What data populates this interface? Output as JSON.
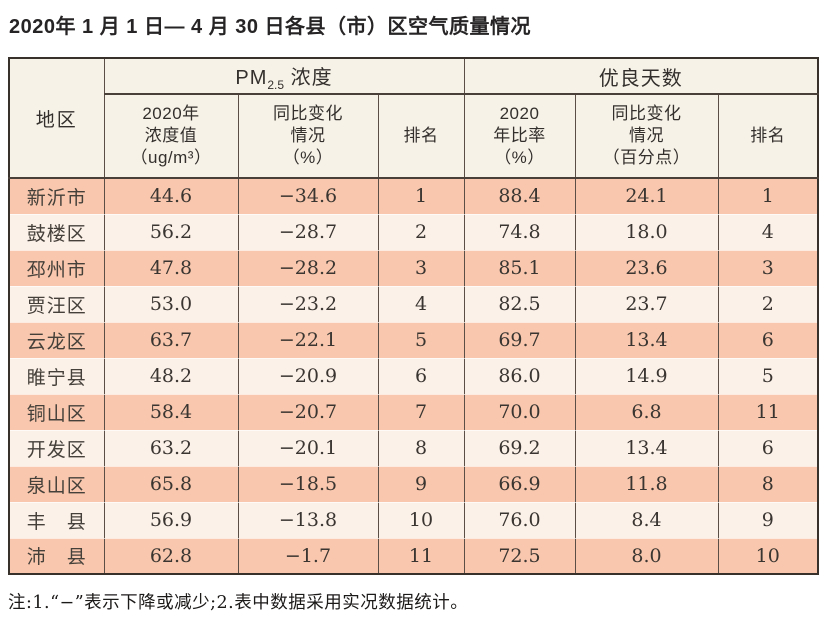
{
  "title": "2020年 1 月 1 日— 4 月 30 日各县（市）区空气质量情况",
  "note": "注:1.“−”表示下降或减少;2.表中数据采用实况数据统计。",
  "table": {
    "header": {
      "region": "地区",
      "pm_group": {
        "prefix": "PM",
        "sub": "2.5",
        "suffix": " 浓度"
      },
      "good_group": "优良天数",
      "pm_value": "2020年\n浓度值\n（ug/m³）",
      "pm_change": "同比变化\n情况\n（%）",
      "pm_rank": "排名",
      "good_rate": "2020\n年比率\n（%）",
      "good_change": "同比变化\n情况\n（百分点）",
      "good_rank": "排名"
    },
    "rows": [
      {
        "region": "新沂市",
        "pm_value": "44.6",
        "pm_change": "−34.6",
        "pm_rank": "1",
        "good_rate": "88.4",
        "good_change": "24.1",
        "good_rank": "1"
      },
      {
        "region": "鼓楼区",
        "pm_value": "56.2",
        "pm_change": "−28.7",
        "pm_rank": "2",
        "good_rate": "74.8",
        "good_change": "18.0",
        "good_rank": "4"
      },
      {
        "region": "邳州市",
        "pm_value": "47.8",
        "pm_change": "−28.2",
        "pm_rank": "3",
        "good_rate": "85.1",
        "good_change": "23.6",
        "good_rank": "3"
      },
      {
        "region": "贾汪区",
        "pm_value": "53.0",
        "pm_change": "−23.2",
        "pm_rank": "4",
        "good_rate": "82.5",
        "good_change": "23.7",
        "good_rank": "2"
      },
      {
        "region": "云龙区",
        "pm_value": "63.7",
        "pm_change": "−22.1",
        "pm_rank": "5",
        "good_rate": "69.7",
        "good_change": "13.4",
        "good_rank": "6"
      },
      {
        "region": "睢宁县",
        "pm_value": "48.2",
        "pm_change": "−20.9",
        "pm_rank": "6",
        "good_rate": "86.0",
        "good_change": "14.9",
        "good_rank": "5"
      },
      {
        "region": "铜山区",
        "pm_value": "58.4",
        "pm_change": "−20.7",
        "pm_rank": "7",
        "good_rate": "70.0",
        "good_change": "6.8",
        "good_rank": "11"
      },
      {
        "region": "开发区",
        "pm_value": "63.2",
        "pm_change": "−20.1",
        "pm_rank": "8",
        "good_rate": "69.2",
        "good_change": "13.4",
        "good_rank": "6"
      },
      {
        "region": "泉山区",
        "pm_value": "65.8",
        "pm_change": "−18.5",
        "pm_rank": "9",
        "good_rate": "66.9",
        "good_change": "11.8",
        "good_rank": "8"
      },
      {
        "region": "丰　县",
        "pm_value": "56.9",
        "pm_change": "−13.8",
        "pm_rank": "10",
        "good_rate": "76.0",
        "good_change": "8.4",
        "good_rank": "9"
      },
      {
        "region": "沛　县",
        "pm_value": "62.8",
        "pm_change": "−1.7",
        "pm_rank": "11",
        "good_rate": "72.5",
        "good_change": "8.0",
        "good_rank": "10"
      }
    ]
  },
  "colors": {
    "row_salmon": "#f8c7ad",
    "row_light": "#fcf1e9",
    "header_bg": "#f7f2e8",
    "grid_line": "#5b4e47",
    "outer_border": "#38302b",
    "header_rule": "#4a403a"
  }
}
